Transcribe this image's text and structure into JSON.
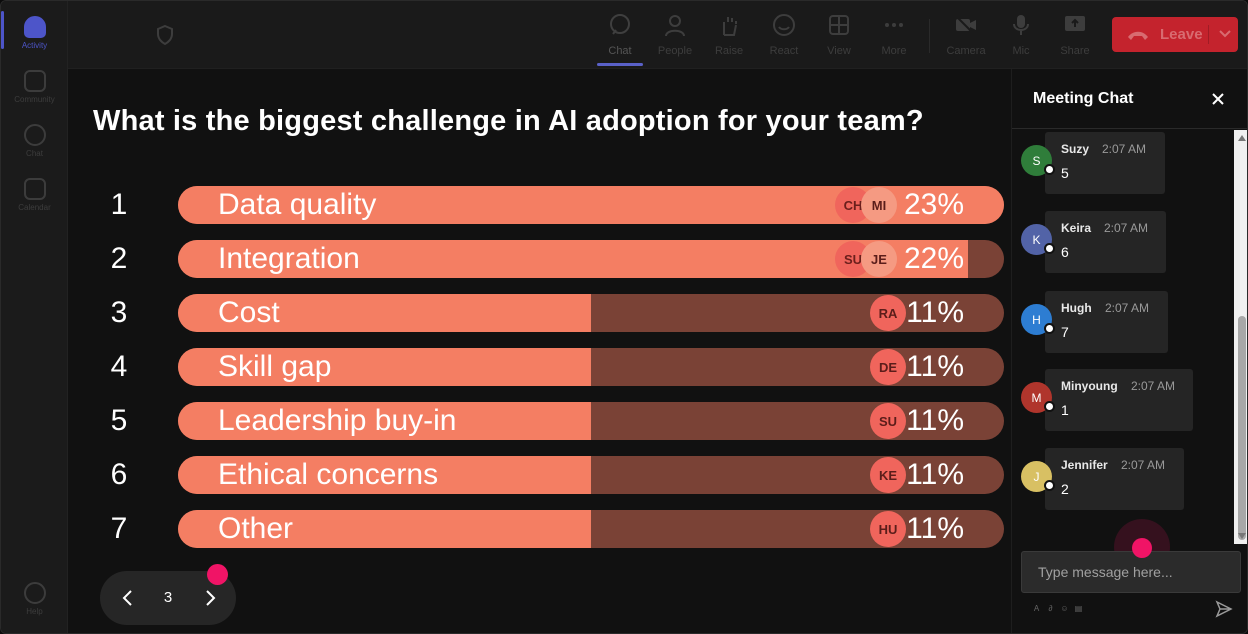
{
  "rail": {
    "items": [
      {
        "label": "Activity",
        "icon": "bell-icon"
      },
      {
        "label": "Community",
        "icon": "community-icon"
      },
      {
        "label": "Chat",
        "icon": "chat-icon"
      },
      {
        "label": "Calendar",
        "icon": "calendar-icon"
      },
      {
        "label": "Help",
        "icon": "help-icon"
      }
    ]
  },
  "toolbar": {
    "chat": "Chat",
    "people": "People",
    "raise": "Raise",
    "react": "React",
    "view": "View",
    "more": "More",
    "camera": "Camera",
    "mic": "Mic",
    "share": "Share",
    "leave": "Leave"
  },
  "poll": {
    "question": "What is the biggest challenge in AI adoption for your team?",
    "options": [
      {
        "num": "1",
        "label": "Data quality",
        "pct": "23%",
        "value": 0.23,
        "avatars": [
          "CH",
          "MI"
        ]
      },
      {
        "num": "2",
        "label": "Integration",
        "pct": "22%",
        "value": 0.22,
        "avatars": [
          "SU",
          "JE"
        ]
      },
      {
        "num": "3",
        "label": "Cost",
        "pct": "11%",
        "value": 0.11,
        "avatars": [
          "RA"
        ]
      },
      {
        "num": "4",
        "label": "Skill gap",
        "pct": "11%",
        "value": 0.11,
        "avatars": [
          "DE"
        ]
      },
      {
        "num": "5",
        "label": "Leadership buy-in",
        "pct": "11%",
        "value": 0.11,
        "avatars": [
          "SU"
        ]
      },
      {
        "num": "6",
        "label": "Ethical concerns",
        "pct": "11%",
        "value": 0.11,
        "avatars": [
          "KE"
        ]
      },
      {
        "num": "7",
        "label": "Other",
        "pct": "11%",
        "value": 0.11,
        "avatars": [
          "HU"
        ]
      }
    ],
    "page": "3"
  },
  "chat": {
    "title": "Meeting Chat",
    "messages": [
      {
        "initial": "S",
        "name": "Suzy",
        "time": "2:07 AM",
        "text": "5",
        "color": "#2f7d3a"
      },
      {
        "initial": "K",
        "name": "Keira",
        "time": "2:07 AM",
        "text": "6",
        "color": "#5263a7"
      },
      {
        "initial": "H",
        "name": "Hugh",
        "time": "2:07 AM",
        "text": "7",
        "color": "#2d7dd2"
      },
      {
        "initial": "M",
        "name": "Minyoung",
        "time": "2:07 AM",
        "text": "1",
        "color": "#b0352c"
      },
      {
        "initial": "J",
        "name": "Jennifer",
        "time": "2:07 AM",
        "text": "2",
        "color": "#d8c063"
      }
    ],
    "input_placeholder": "Type message here..."
  },
  "colors": {
    "bar_fill": "#f47e63",
    "bar_track": "#7a4236",
    "leave": "#c4232d",
    "accent": "#4d55c9",
    "pointer": "#f01466"
  }
}
